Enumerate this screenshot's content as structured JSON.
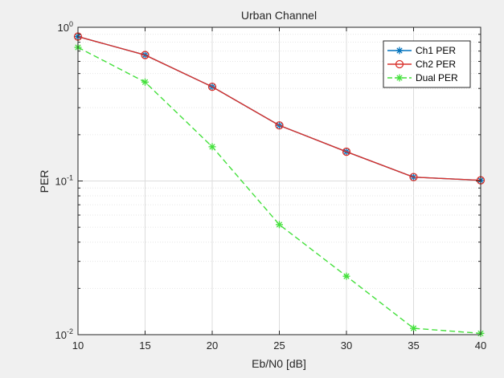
{
  "chart_data": {
    "type": "line",
    "title": "Urban Channel",
    "xlabel": "Eb/N0 [dB]",
    "ylabel": "PER",
    "x": [
      10,
      15,
      20,
      25,
      30,
      35,
      40
    ],
    "xlim": [
      10,
      40
    ],
    "ylim": [
      0.01,
      1
    ],
    "yscale": "log",
    "grid": true,
    "minor_grid": true,
    "legend_position": "top-right",
    "x_tick_labels": [
      "10",
      "15",
      "20",
      "25",
      "30",
      "35",
      "40"
    ],
    "y_tick_labels": [
      {
        "value": 1,
        "base": "10",
        "exp": "0"
      },
      {
        "value": 0.1,
        "base": "10",
        "exp": "-1"
      },
      {
        "value": 0.01,
        "base": "10",
        "exp": "-2"
      }
    ],
    "series": [
      {
        "name": "Ch1 PER",
        "values": [
          0.87,
          0.66,
          0.41,
          0.23,
          0.155,
          0.106,
          0.101
        ],
        "color": "#0072bd",
        "marker": "asterisk",
        "line": "solid"
      },
      {
        "name": "Ch2 PER",
        "values": [
          0.87,
          0.66,
          0.41,
          0.23,
          0.155,
          0.106,
          0.101
        ],
        "color": "#d9312b",
        "marker": "circle",
        "line": "solid"
      },
      {
        "name": "Dual PER",
        "values": [
          0.74,
          0.44,
          0.167,
          0.052,
          0.024,
          0.011,
          0.0102
        ],
        "color": "#44e03c",
        "marker": "asterisk",
        "line": "dashed"
      }
    ]
  }
}
